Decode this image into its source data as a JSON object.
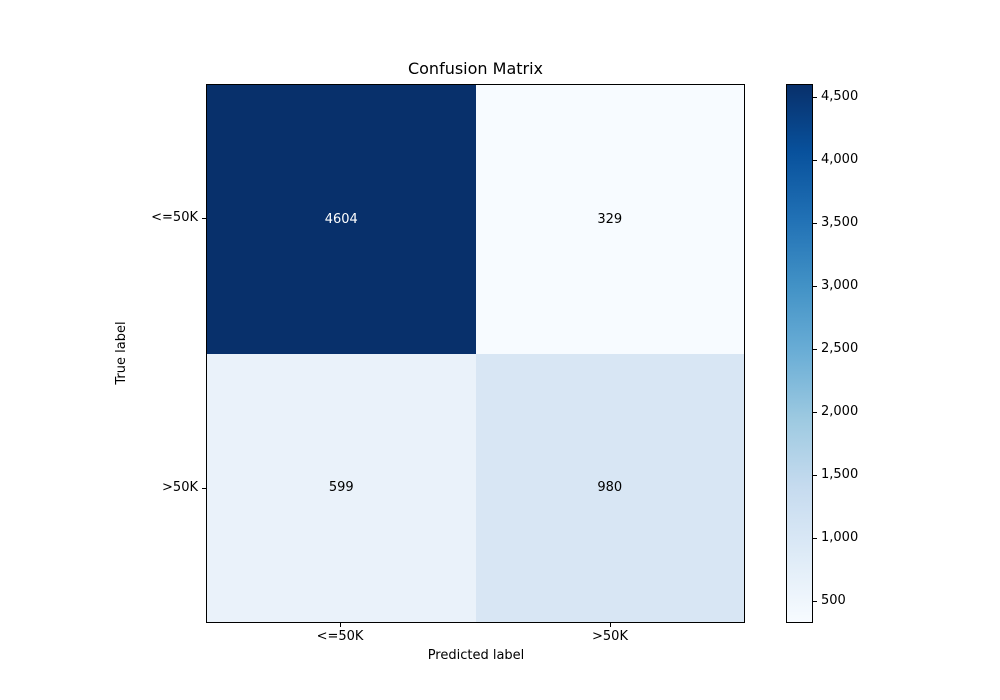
{
  "chart_data": {
    "type": "heatmap",
    "title": "Confusion Matrix",
    "xlabel": "Predicted label",
    "ylabel": "True label",
    "x_tick_labels": [
      "<=50K",
      ">50K"
    ],
    "y_tick_labels": [
      "<=50K",
      ">50K"
    ],
    "matrix": [
      [
        4604,
        329
      ],
      [
        599,
        980
      ]
    ],
    "cells": [
      {
        "true_label": "<=50K",
        "predicted_label": "<=50K",
        "value": 4604,
        "label": "4604",
        "bg": "#08306b",
        "text": "#ffffff"
      },
      {
        "true_label": "<=50K",
        "predicted_label": ">50K",
        "value": 329,
        "label": "329",
        "bg": "#f7fbff",
        "text": "#000000"
      },
      {
        "true_label": ">50K",
        "predicted_label": "<=50K",
        "value": 599,
        "label": "599",
        "bg": "#eaf2fa",
        "text": "#000000"
      },
      {
        "true_label": ">50K",
        "predicted_label": ">50K",
        "value": 980,
        "label": "980",
        "bg": "#d8e6f4",
        "text": "#000000"
      }
    ],
    "colormap": {
      "name": "Blues",
      "stops": [
        "#f7fbff",
        "#deebf7",
        "#c6dbef",
        "#9ecae1",
        "#6baed6",
        "#4292c6",
        "#2171b5",
        "#08519c",
        "#08306b"
      ]
    },
    "colorbar": {
      "position": "right",
      "vmin": 329,
      "vmax": 4604,
      "ticks": [
        {
          "value": 500,
          "label": "500"
        },
        {
          "value": 1000,
          "label": "1,000"
        },
        {
          "value": 1500,
          "label": "1,500"
        },
        {
          "value": 2000,
          "label": "2,000"
        },
        {
          "value": 2500,
          "label": "2,500"
        },
        {
          "value": 3000,
          "label": "3,000"
        },
        {
          "value": 3500,
          "label": "3,500"
        },
        {
          "value": 4000,
          "label": "4,000"
        },
        {
          "value": 4500,
          "label": "4,500"
        }
      ]
    },
    "grid": false,
    "background": "#ffffff"
  }
}
